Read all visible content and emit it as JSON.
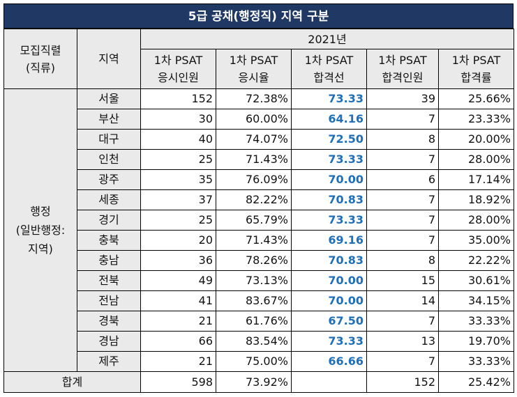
{
  "title": "5급 공채(행정직) 지역 구분",
  "headers": {
    "category": [
      "모집직렬",
      "(직류)"
    ],
    "region": "지역",
    "year": "2021년",
    "columns": [
      [
        "1차 PSAT",
        "응시인원"
      ],
      [
        "1차 PSAT",
        "응시율"
      ],
      [
        "1차  PSAT",
        "합격선"
      ],
      [
        "1차  PSAT",
        "합격인원"
      ],
      [
        "1차  PSAT",
        "합격률"
      ]
    ]
  },
  "group_label": [
    "행정",
    "(일반행정:",
    "지역)"
  ],
  "rows": [
    {
      "region": "서울",
      "applicants": "152",
      "rate": "72.38%",
      "cutoff": "73.33",
      "passed": "39",
      "pass_rate": "25.66%"
    },
    {
      "region": "부산",
      "applicants": "30",
      "rate": "60.00%",
      "cutoff": "64.16",
      "passed": "7",
      "pass_rate": "23.33%"
    },
    {
      "region": "대구",
      "applicants": "40",
      "rate": "74.07%",
      "cutoff": "72.50",
      "passed": "8",
      "pass_rate": "20.00%"
    },
    {
      "region": "인천",
      "applicants": "25",
      "rate": "71.43%",
      "cutoff": "73.33",
      "passed": "7",
      "pass_rate": "28.00%"
    },
    {
      "region": "광주",
      "applicants": "35",
      "rate": "76.09%",
      "cutoff": "70.00",
      "passed": "6",
      "pass_rate": "17.14%"
    },
    {
      "region": "세종",
      "applicants": "37",
      "rate": "82.22%",
      "cutoff": "70.83",
      "passed": "7",
      "pass_rate": "18.92%"
    },
    {
      "region": "경기",
      "applicants": "25",
      "rate": "65.79%",
      "cutoff": "73.33",
      "passed": "7",
      "pass_rate": "28.00%"
    },
    {
      "region": "충북",
      "applicants": "20",
      "rate": "71.43%",
      "cutoff": "69.16",
      "passed": "7",
      "pass_rate": "35.00%"
    },
    {
      "region": "충남",
      "applicants": "36",
      "rate": "78.26%",
      "cutoff": "70.83",
      "passed": "8",
      "pass_rate": "22.22%"
    },
    {
      "region": "전북",
      "applicants": "49",
      "rate": "73.13%",
      "cutoff": "70.00",
      "passed": "15",
      "pass_rate": "30.61%"
    },
    {
      "region": "전남",
      "applicants": "41",
      "rate": "83.67%",
      "cutoff": "70.00",
      "passed": "14",
      "pass_rate": "34.15%"
    },
    {
      "region": "경북",
      "applicants": "21",
      "rate": "61.76%",
      "cutoff": "67.50",
      "passed": "7",
      "pass_rate": "33.33%"
    },
    {
      "region": "경남",
      "applicants": "66",
      "rate": "83.54%",
      "cutoff": "73.33",
      "passed": "13",
      "pass_rate": "19.70%"
    },
    {
      "region": "제주",
      "applicants": "21",
      "rate": "75.00%",
      "cutoff": "66.66",
      "passed": "7",
      "pass_rate": "33.33%"
    }
  ],
  "total": {
    "label": "합계",
    "applicants": "598",
    "rate": "73.92%",
    "cutoff": "",
    "passed": "152",
    "pass_rate": "25.42%"
  },
  "colors": {
    "title_bg": "#1f3864",
    "header_bg": "#eaeaea",
    "cutoff_text": "#1f6fba"
  }
}
